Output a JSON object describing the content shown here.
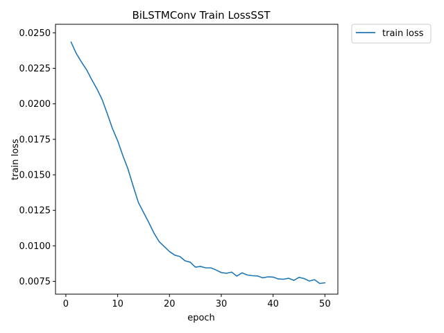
{
  "chart_data": {
    "type": "line",
    "title": "BiLSTMConv Train LossSST",
    "xlabel": "epoch",
    "ylabel": "train loss",
    "xlim": [
      -2,
      52.5
    ],
    "ylim": [
      0.0066,
      0.0256
    ],
    "xticks": [
      0,
      10,
      20,
      30,
      40,
      50
    ],
    "yticks": [
      0.0075,
      0.01,
      0.0125,
      0.015,
      0.0175,
      0.02,
      0.0225,
      0.025
    ],
    "xtick_labels": [
      "0",
      "10",
      "20",
      "30",
      "40",
      "50"
    ],
    "ytick_labels": [
      "0.0075",
      "0.0100",
      "0.0125",
      "0.0150",
      "0.0175",
      "0.0200",
      "0.0225",
      "0.0250"
    ],
    "grid": false,
    "legend_position": "outside-top-right",
    "series": [
      {
        "name": "train loss",
        "color": "#1f77b4",
        "x": [
          1,
          2,
          3,
          4,
          5,
          6,
          7,
          8,
          9,
          10,
          11,
          12,
          13,
          14,
          15,
          16,
          17,
          18,
          19,
          20,
          21,
          22,
          23,
          24,
          25,
          26,
          27,
          28,
          29,
          30,
          31,
          32,
          33,
          34,
          35,
          36,
          37,
          38,
          39,
          40,
          41,
          42,
          43,
          44,
          45,
          46,
          47,
          48,
          49,
          50
        ],
        "values": [
          0.02435,
          0.02355,
          0.02295,
          0.0224,
          0.0217,
          0.02105,
          0.0203,
          0.0193,
          0.01825,
          0.0174,
          0.01635,
          0.0154,
          0.0142,
          0.01305,
          0.01235,
          0.01165,
          0.0109,
          0.0103,
          0.00995,
          0.0096,
          0.00935,
          0.00925,
          0.00895,
          0.00885,
          0.0085,
          0.00855,
          0.00845,
          0.00845,
          0.0083,
          0.00812,
          0.00807,
          0.00815,
          0.00787,
          0.0081,
          0.00795,
          0.0079,
          0.00788,
          0.00775,
          0.00782,
          0.0078,
          0.00767,
          0.00765,
          0.00772,
          0.00757,
          0.00778,
          0.0077,
          0.00752,
          0.00762,
          0.00735,
          0.0074
        ]
      }
    ]
  }
}
